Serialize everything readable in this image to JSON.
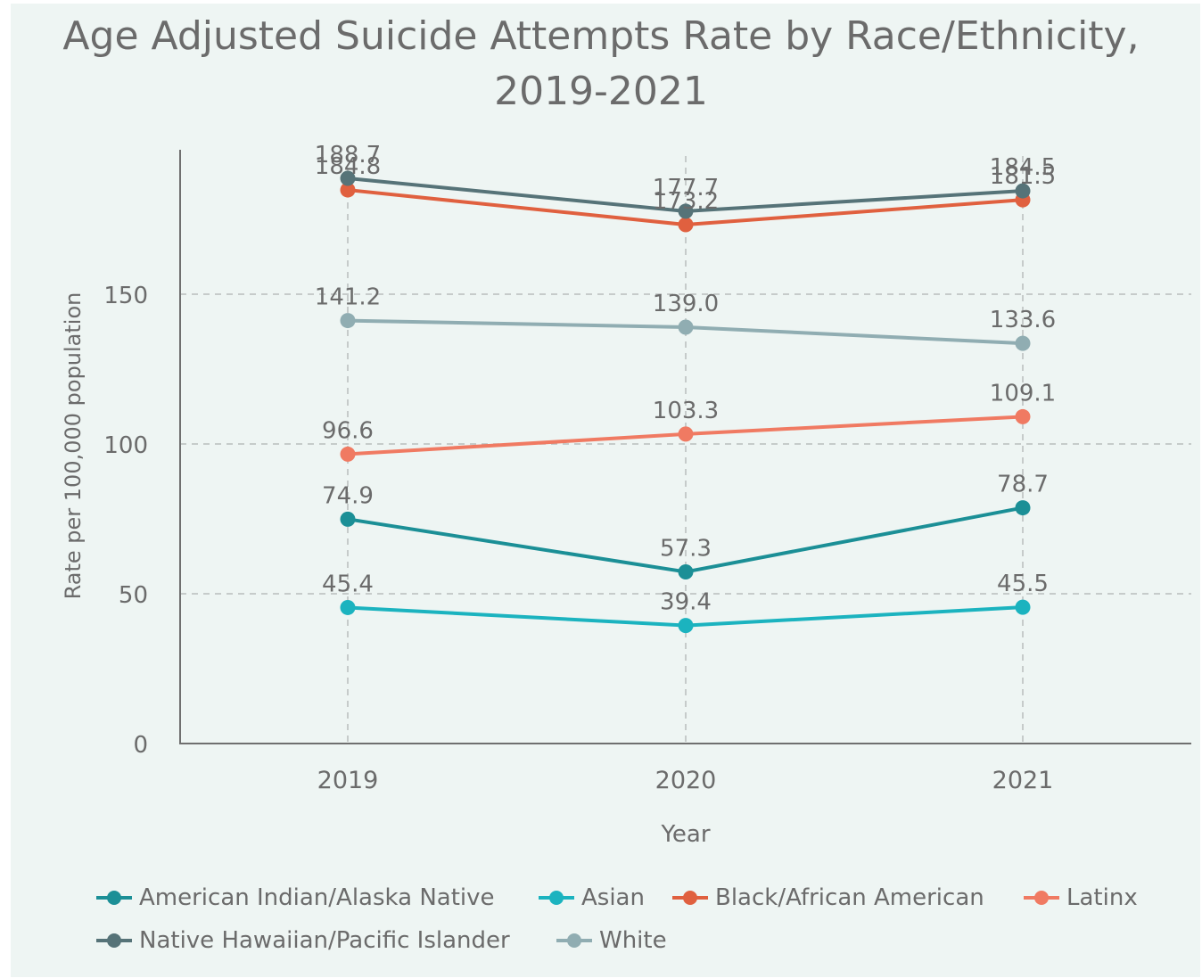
{
  "chart_data": {
    "type": "line",
    "title": "Age Adjusted Suicide Attempts Rate by Race/Ethnicity, 2019-2021",
    "title_lines": [
      "Age Adjusted Suicide Attempts Rate by Race/Ethnicity,",
      "2019-2021"
    ],
    "xlabel": "Year",
    "ylabel": "Rate per 100,000 population",
    "x": [
      "2019",
      "2020",
      "2021"
    ],
    "yticks": [
      0,
      50,
      100,
      150
    ],
    "ylim": [
      0,
      200
    ],
    "grid": true,
    "legend_position": "bottom",
    "series": [
      {
        "name": "American Indian/Alaska Native",
        "values": [
          74.9,
          57.3,
          78.7
        ],
        "labels": [
          "74.9",
          "57.3",
          "78.7"
        ],
        "color": "#1b8f96"
      },
      {
        "name": "Asian",
        "values": [
          45.4,
          39.4,
          45.5
        ],
        "labels": [
          "45.4",
          "39.4",
          "45.5"
        ],
        "color": "#1bb3bf"
      },
      {
        "name": "Black/African American",
        "values": [
          184.8,
          173.2,
          181.5
        ],
        "labels": [
          "184.8",
          "173.2",
          "181.5"
        ],
        "color": "#e0603f"
      },
      {
        "name": "Latinx",
        "values": [
          96.6,
          103.3,
          109.1
        ],
        "labels": [
          "96.6",
          "103.3",
          "109.1"
        ],
        "color": "#f07a62"
      },
      {
        "name": "Native Hawaiian/Pacific Islander",
        "values": [
          188.7,
          177.7,
          184.5
        ],
        "labels": [
          "188.7",
          "177.7",
          "184.5"
        ],
        "color": "#567378"
      },
      {
        "name": "White",
        "values": [
          141.2,
          139.0,
          133.6
        ],
        "labels": [
          "141.2",
          "139.0",
          "133.6"
        ],
        "color": "#90adb2"
      }
    ]
  }
}
